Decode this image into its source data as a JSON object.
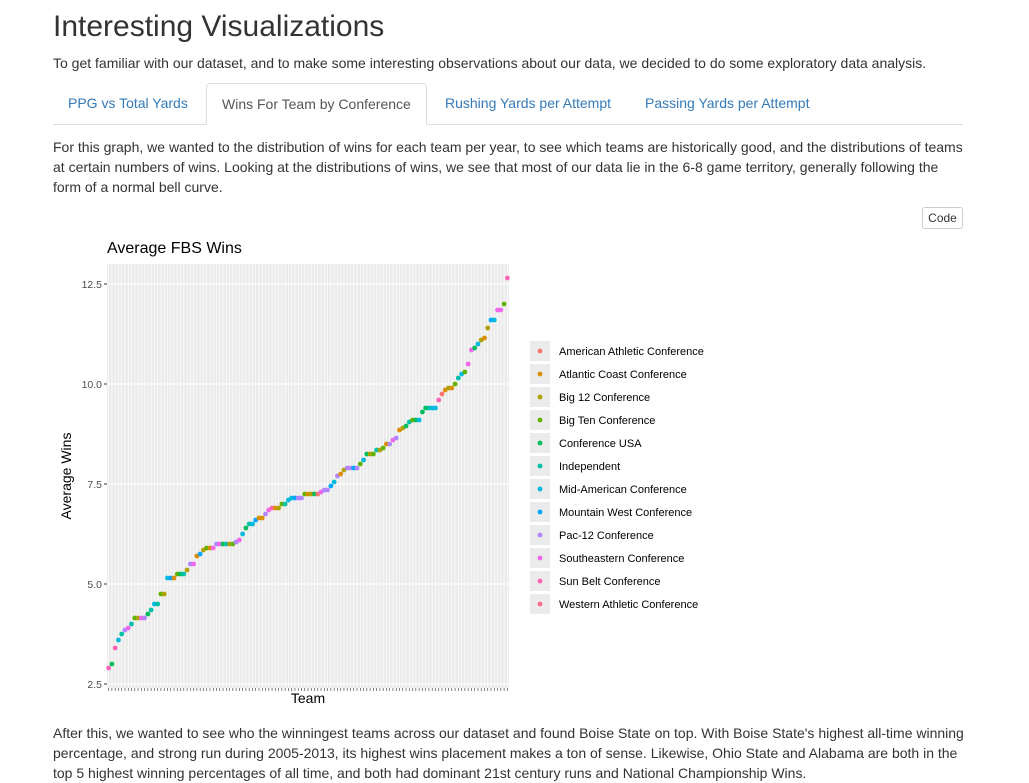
{
  "page": {
    "title": "Interesting Visualizations",
    "intro": "To get familiar with our dataset, and to make some interesting observations about our data, we decided to do some exploratory data analysis.",
    "tabs": [
      {
        "label": "PPG vs Total Yards",
        "active": false
      },
      {
        "label": "Wins For Team by Conference",
        "active": true
      },
      {
        "label": "Rushing Yards per Attempt",
        "active": false
      },
      {
        "label": "Passing Yards per Attempt",
        "active": false
      }
    ],
    "paragraph1": "For this graph, we wanted to the distribution of wins for each team per year, to see which teams are historically good, and the distributions of teams at certain numbers of wins. Looking at the distributions of wins, we see that most of our data lie in the 6-8 game territory, generally following the form of a normal bell curve.",
    "code_button": "Code",
    "paragraph2": "After this, we wanted to see who the winningest teams across our dataset and found Boise State on top. With Boise State's highest all-time winning percentage, and strong run during 2005-2013, its highest wins placement makes a ton of sense. Likewise, Ohio State and Alabama are both in the top 5 highest winning percentages of all time, and both had dominant 21st century runs and National Championship Wins."
  },
  "colors": {
    "link": "#337ab7",
    "panel_background": "#ebebeb",
    "gridline": "#ffffff"
  },
  "chart_data": {
    "type": "scatter",
    "title": "Average FBS Wins",
    "xlabel": "Team",
    "ylabel": "Average Wins",
    "ylim": [
      2.4,
      13.0
    ],
    "y_ticks": [
      "2.5",
      "5.0",
      "7.5",
      "10.0",
      "12.5"
    ],
    "y_tick_values": [
      2.5,
      5.0,
      7.5,
      10.0,
      12.5
    ],
    "legend_position": "right",
    "legend": [
      {
        "name": "American Athletic Conference",
        "color": "#F8766D"
      },
      {
        "name": "Atlantic Coast Conference",
        "color": "#DB8E00"
      },
      {
        "name": "Big 12 Conference",
        "color": "#AEA200"
      },
      {
        "name": "Big Ten Conference",
        "color": "#64B200"
      },
      {
        "name": "Conference USA",
        "color": "#00BD5C"
      },
      {
        "name": "Independent",
        "color": "#00C1A7"
      },
      {
        "name": "Mid-American Conference",
        "color": "#00BADE"
      },
      {
        "name": "Mountain West Conference",
        "color": "#00A6FF"
      },
      {
        "name": "Pac-12 Conference",
        "color": "#B385FF"
      },
      {
        "name": "Southeastern Conference",
        "color": "#EF67EB"
      },
      {
        "name": "Sun Belt Conference",
        "color": "#FF63B6"
      },
      {
        "name": "Western Athletic Conference",
        "color": "#FF6C91"
      }
    ],
    "points": [
      {
        "y": 2.9,
        "c": 10
      },
      {
        "y": 3.0,
        "c": 4
      },
      {
        "y": 3.4,
        "c": 10
      },
      {
        "y": 3.6,
        "c": 6
      },
      {
        "y": 3.75,
        "c": 5
      },
      {
        "y": 3.85,
        "c": 8
      },
      {
        "y": 3.9,
        "c": 9
      },
      {
        "y": 4.0,
        "c": 5
      },
      {
        "y": 4.15,
        "c": 3
      },
      {
        "y": 4.15,
        "c": 2
      },
      {
        "y": 4.15,
        "c": 9
      },
      {
        "y": 4.15,
        "c": 8
      },
      {
        "y": 4.25,
        "c": 4
      },
      {
        "y": 4.35,
        "c": 5
      },
      {
        "y": 4.5,
        "c": 6
      },
      {
        "y": 4.5,
        "c": 5
      },
      {
        "y": 4.75,
        "c": 3
      },
      {
        "y": 4.75,
        "c": 2
      },
      {
        "y": 5.15,
        "c": 6
      },
      {
        "y": 5.15,
        "c": 7
      },
      {
        "y": 5.15,
        "c": 1
      },
      {
        "y": 5.25,
        "c": 3
      },
      {
        "y": 5.25,
        "c": 4
      },
      {
        "y": 5.25,
        "c": 5
      },
      {
        "y": 5.35,
        "c": 2
      },
      {
        "y": 5.5,
        "c": 8
      },
      {
        "y": 5.5,
        "c": 9
      },
      {
        "y": 5.7,
        "c": 1
      },
      {
        "y": 5.75,
        "c": 7
      },
      {
        "y": 5.85,
        "c": 2
      },
      {
        "y": 5.9,
        "c": 3
      },
      {
        "y": 5.9,
        "c": 1
      },
      {
        "y": 5.9,
        "c": 9
      },
      {
        "y": 6.0,
        "c": 8
      },
      {
        "y": 6.0,
        "c": 9
      },
      {
        "y": 6.0,
        "c": 4
      },
      {
        "y": 6.0,
        "c": 5
      },
      {
        "y": 6.0,
        "c": 2
      },
      {
        "y": 6.0,
        "c": 3
      },
      {
        "y": 6.05,
        "c": 8
      },
      {
        "y": 6.1,
        "c": 9
      },
      {
        "y": 6.25,
        "c": 6
      },
      {
        "y": 6.4,
        "c": 4
      },
      {
        "y": 6.5,
        "c": 5
      },
      {
        "y": 6.5,
        "c": 6
      },
      {
        "y": 6.6,
        "c": 7
      },
      {
        "y": 6.65,
        "c": 1
      },
      {
        "y": 6.65,
        "c": 1
      },
      {
        "y": 6.75,
        "c": 8
      },
      {
        "y": 6.85,
        "c": 9
      },
      {
        "y": 6.9,
        "c": 10
      },
      {
        "y": 6.9,
        "c": 1
      },
      {
        "y": 6.9,
        "c": 2
      },
      {
        "y": 7.0,
        "c": 3
      },
      {
        "y": 7.0,
        "c": 5
      },
      {
        "y": 7.1,
        "c": 6
      },
      {
        "y": 7.15,
        "c": 6
      },
      {
        "y": 7.15,
        "c": 7
      },
      {
        "y": 7.15,
        "c": 8
      },
      {
        "y": 7.15,
        "c": 8
      },
      {
        "y": 7.25,
        "c": 3
      },
      {
        "y": 7.25,
        "c": 1
      },
      {
        "y": 7.25,
        "c": 2
      },
      {
        "y": 7.25,
        "c": 4
      },
      {
        "y": 7.25,
        "c": 0
      },
      {
        "y": 7.3,
        "c": 9
      },
      {
        "y": 7.35,
        "c": 8
      },
      {
        "y": 7.35,
        "c": 8
      },
      {
        "y": 7.45,
        "c": 7
      },
      {
        "y": 7.55,
        "c": 6
      },
      {
        "y": 7.7,
        "c": 8
      },
      {
        "y": 7.75,
        "c": 1
      },
      {
        "y": 7.85,
        "c": 2
      },
      {
        "y": 7.9,
        "c": 8
      },
      {
        "y": 7.9,
        "c": 8
      },
      {
        "y": 7.9,
        "c": 7
      },
      {
        "y": 7.9,
        "c": 8
      },
      {
        "y": 8.0,
        "c": 3
      },
      {
        "y": 8.1,
        "c": 6
      },
      {
        "y": 8.25,
        "c": 4
      },
      {
        "y": 8.25,
        "c": 2
      },
      {
        "y": 8.25,
        "c": 3
      },
      {
        "y": 8.35,
        "c": 5
      },
      {
        "y": 8.35,
        "c": 2
      },
      {
        "y": 8.4,
        "c": 3
      },
      {
        "y": 8.5,
        "c": 1
      },
      {
        "y": 8.5,
        "c": 8
      },
      {
        "y": 8.6,
        "c": 9
      },
      {
        "y": 8.65,
        "c": 8
      },
      {
        "y": 8.85,
        "c": 1
      },
      {
        "y": 8.9,
        "c": 2
      },
      {
        "y": 8.95,
        "c": 4
      },
      {
        "y": 9.05,
        "c": 5
      },
      {
        "y": 9.1,
        "c": 3
      },
      {
        "y": 9.1,
        "c": 4
      },
      {
        "y": 9.1,
        "c": 6
      },
      {
        "y": 9.3,
        "c": 4
      },
      {
        "y": 9.4,
        "c": 4
      },
      {
        "y": 9.4,
        "c": 5
      },
      {
        "y": 9.4,
        "c": 6
      },
      {
        "y": 9.4,
        "c": 6
      },
      {
        "y": 9.6,
        "c": 10
      },
      {
        "y": 9.75,
        "c": 0
      },
      {
        "y": 9.85,
        "c": 1
      },
      {
        "y": 9.9,
        "c": 2
      },
      {
        "y": 9.9,
        "c": 1
      },
      {
        "y": 10.0,
        "c": 3
      },
      {
        "y": 10.15,
        "c": 5
      },
      {
        "y": 10.25,
        "c": 6
      },
      {
        "y": 10.3,
        "c": 3
      },
      {
        "y": 10.5,
        "c": 9
      },
      {
        "y": 10.85,
        "c": 9
      },
      {
        "y": 10.9,
        "c": 4
      },
      {
        "y": 11.0,
        "c": 6
      },
      {
        "y": 11.1,
        "c": 2
      },
      {
        "y": 11.15,
        "c": 1
      },
      {
        "y": 11.4,
        "c": 2
      },
      {
        "y": 11.6,
        "c": 7
      },
      {
        "y": 11.6,
        "c": 6
      },
      {
        "y": 11.85,
        "c": 9
      },
      {
        "y": 11.85,
        "c": 9
      },
      {
        "y": 12.0,
        "c": 3
      },
      {
        "y": 12.65,
        "c": 10
      }
    ]
  }
}
